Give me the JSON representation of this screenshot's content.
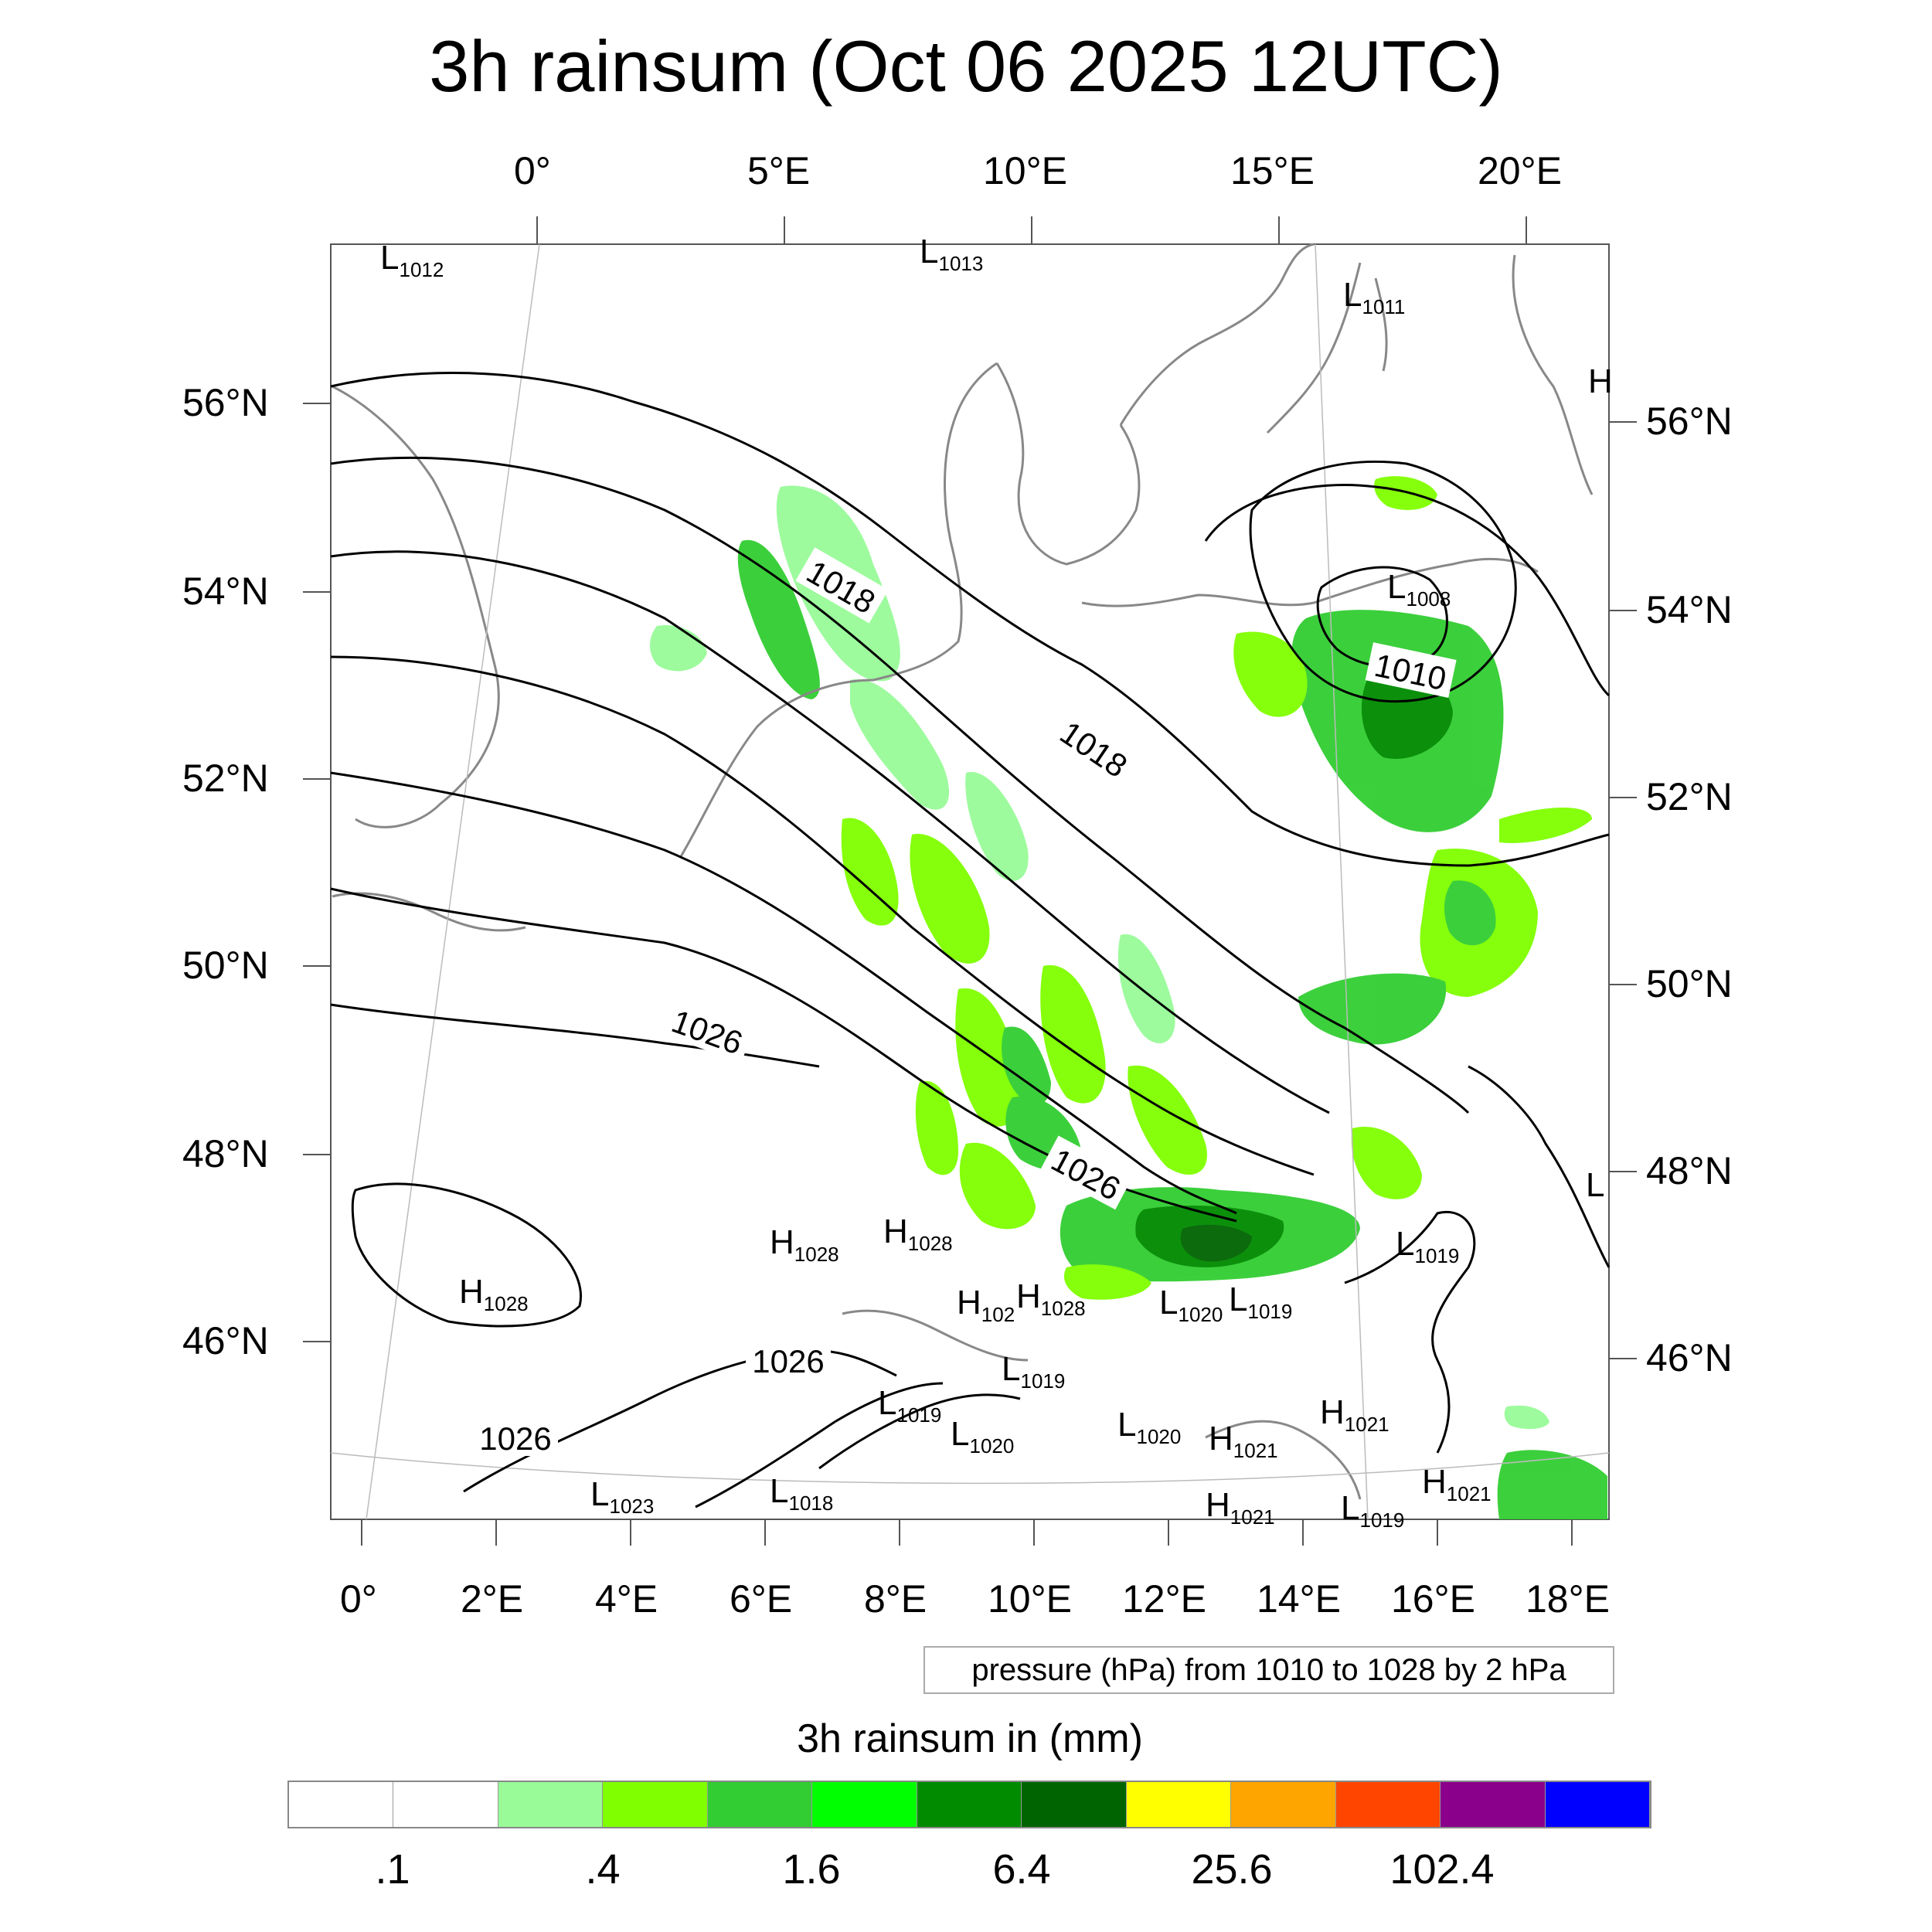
{
  "title": "3h rainsum (Oct 06 2025 12UTC)",
  "top_longitude_labels": [
    "0°",
    "5°E",
    "10°E",
    "15°E",
    "20°E"
  ],
  "bottom_longitude_labels": [
    "0°",
    "2°E",
    "4°E",
    "6°E",
    "8°E",
    "10°E",
    "12°E",
    "14°E",
    "16°E",
    "18°E"
  ],
  "left_latitude_labels": [
    "56°N",
    "54°N",
    "52°N",
    "50°N",
    "48°N",
    "46°N"
  ],
  "right_latitude_labels": [
    "56°N",
    "54°N",
    "52°N",
    "50°N",
    "48°N",
    "46°N"
  ],
  "isobar_labels": [
    "1018",
    "1018",
    "1010",
    "1026",
    "1026",
    "1026",
    "1026"
  ],
  "pressure_centers": [
    {
      "kind": "L",
      "value": "1012"
    },
    {
      "kind": "L",
      "value": "1013"
    },
    {
      "kind": "L",
      "value": "1011"
    },
    {
      "kind": "H",
      "value": ""
    },
    {
      "kind": "L",
      "value": "1008"
    },
    {
      "kind": "L",
      "value": ""
    },
    {
      "kind": "H",
      "value": "1028"
    },
    {
      "kind": "H",
      "value": "1028"
    },
    {
      "kind": "H",
      "value": "1028"
    },
    {
      "kind": "H",
      "value": "102"
    },
    {
      "kind": "H",
      "value": "1028"
    },
    {
      "kind": "L",
      "value": "1020"
    },
    {
      "kind": "L",
      "value": "1019"
    },
    {
      "kind": "L",
      "value": "1019"
    },
    {
      "kind": "L",
      "value": "1019"
    },
    {
      "kind": "L",
      "value": "1019"
    },
    {
      "kind": "L",
      "value": "1020"
    },
    {
      "kind": "L",
      "value": "1020"
    },
    {
      "kind": "H",
      "value": "1021"
    },
    {
      "kind": "H",
      "value": "1021"
    },
    {
      "kind": "H",
      "value": "1021"
    },
    {
      "kind": "L",
      "value": "1023"
    },
    {
      "kind": "L",
      "value": "1018"
    },
    {
      "kind": "H",
      "value": "1021"
    },
    {
      "kind": "L",
      "value": "1019"
    }
  ],
  "pressure_note": "pressure (hPa) from 1010 to 1028 by 2 hPa",
  "legend": {
    "title": "3h rainsum in (mm)",
    "colors": [
      "#ffffff",
      "#ffffff",
      "#98fb98",
      "#7fff00",
      "#32cd32",
      "#00ff00",
      "#008b00",
      "#006400",
      "#ffff00",
      "#ffa500",
      "#ff4500",
      "#8b008b",
      "#0000ff"
    ],
    "labels": [
      ".1",
      ".4",
      "1.6",
      "6.4",
      "25.6",
      "102.4"
    ]
  }
}
